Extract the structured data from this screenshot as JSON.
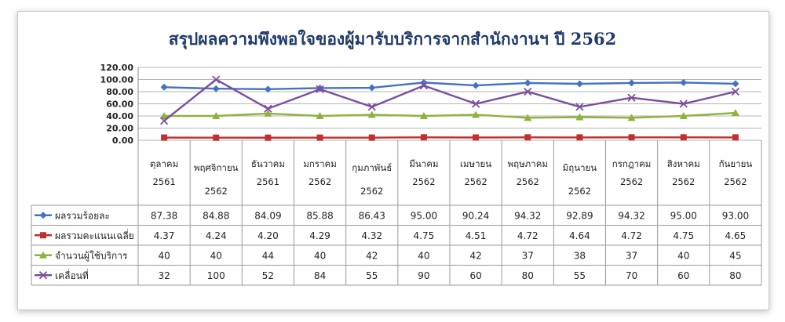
{
  "chart_data": {
    "type": "line",
    "title": "สรุปผลความพึงพอใจของผู้มารับบริการจากสำนักงานฯ ปี 2562",
    "categories": [
      [
        "ตุลาคม",
        "2561"
      ],
      [
        "พฤศจิกายน",
        "2562"
      ],
      [
        "ธันวาคม",
        "2561"
      ],
      [
        "มกราคม",
        "2562"
      ],
      [
        "กุมภาพันธ์",
        "2562"
      ],
      [
        "มีนาคม",
        "2562"
      ],
      [
        "เมษายน",
        "2562"
      ],
      [
        "พฤษภาคม",
        "2562"
      ],
      [
        "มิถุนายน",
        "2562"
      ],
      [
        "กรกฎาคม",
        "2562"
      ],
      [
        "สิงหาคม",
        "2562"
      ],
      [
        "กันยายน",
        "2562"
      ]
    ],
    "y_tick_labels": [
      "0.00",
      "20.00",
      "40.00",
      "60.00",
      "80.00",
      "100.00",
      "120.00"
    ],
    "ylim": [
      0,
      120
    ],
    "grid": true,
    "legend": "data-table",
    "series": [
      {
        "name": "ผลรวมร้อยละ",
        "color": "#4472c4",
        "marker": "diamond",
        "values": [
          87.38,
          84.88,
          84.09,
          85.88,
          86.43,
          95.0,
          90.24,
          94.32,
          92.89,
          94.32,
          95.0,
          93.0
        ],
        "labels": [
          "87.38",
          "84.88",
          "84.09",
          "85.88",
          "86.43",
          "95.00",
          "90.24",
          "94.32",
          "92.89",
          "94.32",
          "95.00",
          "93.00"
        ]
      },
      {
        "name": "ผลรวมคะแนนเฉลี่ย",
        "color": "#c0302f",
        "marker": "square",
        "values": [
          4.37,
          4.24,
          4.2,
          4.29,
          4.32,
          4.75,
          4.51,
          4.72,
          4.64,
          4.72,
          4.75,
          4.65
        ],
        "labels": [
          "4.37",
          "4.24",
          "4.20",
          "4.29",
          "4.32",
          "4.75",
          "4.51",
          "4.72",
          "4.64",
          "4.72",
          "4.75",
          "4.65"
        ]
      },
      {
        "name": "จำนวนผู้ใช้บริการ",
        "color": "#8cb43c",
        "marker": "triangle",
        "values": [
          40,
          40,
          44,
          40,
          42,
          40,
          42,
          37,
          38,
          37,
          40,
          45
        ],
        "labels": [
          "40",
          "40",
          "44",
          "40",
          "42",
          "40",
          "42",
          "37",
          "38",
          "37",
          "40",
          "45"
        ]
      },
      {
        "name": "เคลื่อนที่",
        "color": "#7a4ea0",
        "marker": "x",
        "values": [
          32,
          100,
          52,
          84,
          55,
          90,
          60,
          80,
          55,
          70,
          60,
          80
        ],
        "labels": [
          "32",
          "100",
          "52",
          "84",
          "55",
          "90",
          "60",
          "80",
          "55",
          "70",
          "60",
          "80"
        ]
      }
    ]
  }
}
